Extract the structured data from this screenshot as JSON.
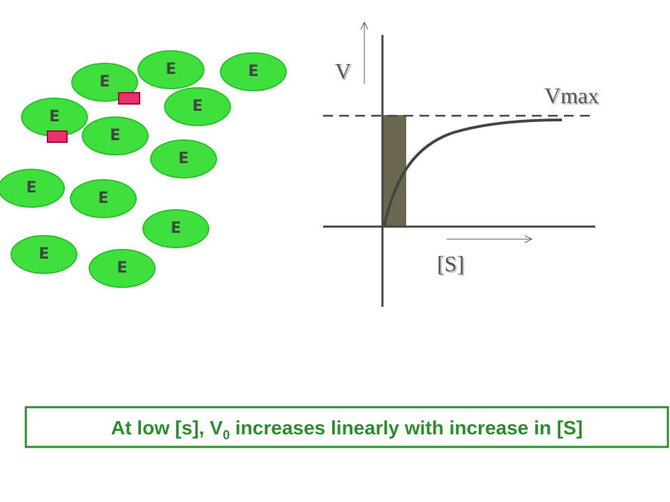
{
  "enzymes": [
    {
      "label": "E"
    },
    {
      "label": "E"
    },
    {
      "label": "E"
    },
    {
      "label": "E"
    },
    {
      "label": "E"
    },
    {
      "label": "E"
    },
    {
      "label": "E"
    },
    {
      "label": "E"
    },
    {
      "label": "E"
    },
    {
      "label": "E"
    },
    {
      "label": "E"
    },
    {
      "label": "E"
    }
  ],
  "graph": {
    "y_label": "V",
    "max_label": "Vmax",
    "x_label": "[S]"
  },
  "caption": {
    "before": "At low [s], V",
    "subscript": "0",
    "after": " increases linearly with increase in [S]"
  }
}
